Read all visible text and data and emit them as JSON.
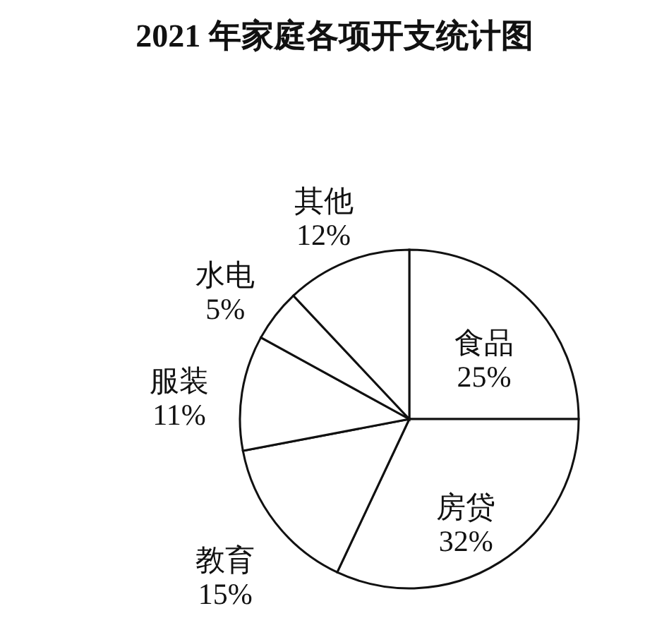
{
  "chart_data": {
    "type": "pie",
    "title": "2021 年家庭各项开支统计图",
    "categories": [
      "食品",
      "房贷",
      "教育",
      "服装",
      "水电",
      "其他"
    ],
    "values": [
      25,
      32,
      15,
      11,
      5,
      12
    ],
    "value_labels": [
      "25%",
      "32%",
      "15%",
      "11%",
      "5%",
      "12%"
    ],
    "colors": [
      "#ffffff",
      "#ffffff",
      "#ffffff",
      "#ffffff",
      "#ffffff",
      "#ffffff"
    ]
  }
}
